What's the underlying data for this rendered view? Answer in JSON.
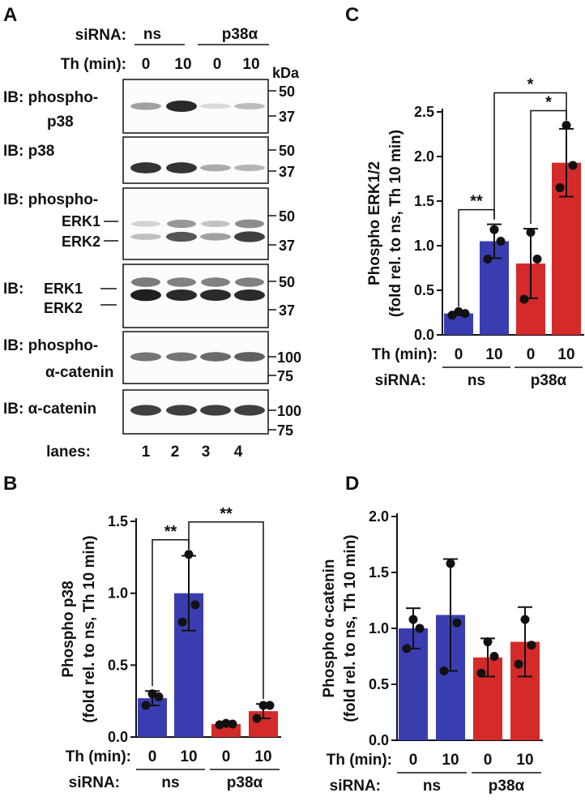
{
  "panels": {
    "blot": {
      "letter": "A",
      "sirna_label": "siRNA:",
      "ns_label": "ns",
      "p38a_label": "p38α",
      "th_label": "Th (min):",
      "th_values": [
        "0",
        "10",
        "0",
        "10"
      ],
      "kda_label": "kDa",
      "lanes_label": "lanes:",
      "lane_numbers": [
        "1",
        "2",
        "3",
        "4"
      ],
      "ib": [
        {
          "l1": "IB: phospho-",
          "l2": "p38",
          "markers": [
            "50",
            "37"
          ]
        },
        {
          "l1": "IB: p38",
          "l2": "",
          "markers": [
            "50",
            "37"
          ]
        },
        {
          "l1": "IB: phospho-",
          "l2": "",
          "erk1": "ERK1",
          "erk2": "ERK2",
          "markers": [
            "50",
            "37"
          ]
        },
        {
          "l1": "IB:",
          "l2": "",
          "erk1": "ERK1",
          "erk2": "ERK2",
          "markers": [
            "50",
            "37"
          ]
        },
        {
          "l1": "IB: phospho-",
          "l2": "α-catenin",
          "markers": [
            "100",
            "75"
          ]
        },
        {
          "l1": "IB: α-catenin",
          "l2": "",
          "markers": [
            "100",
            "75"
          ]
        }
      ],
      "band_intensity": [
        [
          0.35,
          0.9,
          0.08,
          0.22
        ],
        [
          0.85,
          0.85,
          0.3,
          0.25
        ],
        [
          0.2,
          0.7,
          0.35,
          0.8
        ],
        [
          0.95,
          0.9,
          0.9,
          0.9
        ],
        [
          0.55,
          0.55,
          0.6,
          0.65
        ],
        [
          0.8,
          0.8,
          0.8,
          0.8
        ]
      ]
    },
    "B": {
      "letter": "B"
    },
    "C": {
      "letter": "C"
    },
    "D": {
      "letter": "D"
    }
  },
  "colors": {
    "ns": "#3a3db0",
    "p38a": "#d42a2a",
    "axis": "#111111"
  },
  "chart_data": [
    {
      "id": "B",
      "type": "bar",
      "ylabel_1": "Phospho p38",
      "ylabel_2": "(fold rel. to ns, Th 10 min)",
      "ylim": [
        0,
        1.5
      ],
      "yticks": [
        "0.0",
        "0.5",
        "1.0",
        "1.5"
      ],
      "th_label": "Th (min):",
      "sirna_label": "siRNA:",
      "categories": [
        "0",
        "10",
        "0",
        "10"
      ],
      "groups": [
        "ns",
        "p38α"
      ],
      "values": [
        0.27,
        1.0,
        0.09,
        0.18
      ],
      "sd": [
        0.05,
        0.26,
        0.01,
        0.05
      ],
      "points": [
        [
          0.22,
          0.28,
          0.3
        ],
        [
          0.8,
          0.92,
          1.27
        ],
        [
          0.085,
          0.09,
          0.095
        ],
        [
          0.13,
          0.22,
          0.22
        ]
      ],
      "sig": [
        {
          "from": 0,
          "to": 1,
          "label": "**"
        },
        {
          "from": 1,
          "to": 3,
          "label": "**"
        }
      ]
    },
    {
      "id": "C",
      "type": "bar",
      "ylabel_1": "Phospho ERK1/2",
      "ylabel_2": "(fold rel. to ns, Th 10 min)",
      "ylim": [
        0,
        2.5
      ],
      "yticks": [
        "0.0",
        "0.5",
        "1.0",
        "1.5",
        "2.0",
        "2.5"
      ],
      "th_label": "Th (min):",
      "sirna_label": "siRNA:",
      "categories": [
        "0",
        "10",
        "0",
        "10"
      ],
      "groups": [
        "ns",
        "p38α"
      ],
      "values": [
        0.24,
        1.05,
        0.8,
        1.93
      ],
      "sd": [
        0.02,
        0.19,
        0.39,
        0.38
      ],
      "points": [
        [
          0.22,
          0.24,
          0.26
        ],
        [
          0.85,
          1.05,
          1.18
        ],
        [
          0.4,
          0.85,
          1.15
        ],
        [
          1.65,
          1.9,
          2.35
        ]
      ],
      "sig": [
        {
          "from": 0,
          "to": 1,
          "label": "**"
        },
        {
          "from": 2,
          "to": 3,
          "label": "*"
        },
        {
          "from": 1,
          "to": 3,
          "label": "*"
        }
      ]
    },
    {
      "id": "D",
      "type": "bar",
      "ylabel_1": "Phospho α-catenin",
      "ylabel_2": "(fold rel. to ns, Th 10 min)",
      "ylim": [
        0,
        2.0
      ],
      "yticks": [
        "0.0",
        "0.5",
        "1.0",
        "1.5",
        "2.0"
      ],
      "th_label": "Th (min):",
      "sirna_label": "siRNA:",
      "categories": [
        "0",
        "10",
        "0",
        "10"
      ],
      "groups": [
        "ns",
        "p38α"
      ],
      "values": [
        1.0,
        1.12,
        0.74,
        0.88
      ],
      "sd": [
        0.18,
        0.5,
        0.17,
        0.31
      ],
      "points": [
        [
          0.82,
          1.0,
          1.08
        ],
        [
          0.62,
          1.05,
          1.58
        ],
        [
          0.6,
          0.75,
          0.88
        ],
        [
          0.68,
          0.85,
          1.08
        ]
      ],
      "sig": []
    }
  ]
}
